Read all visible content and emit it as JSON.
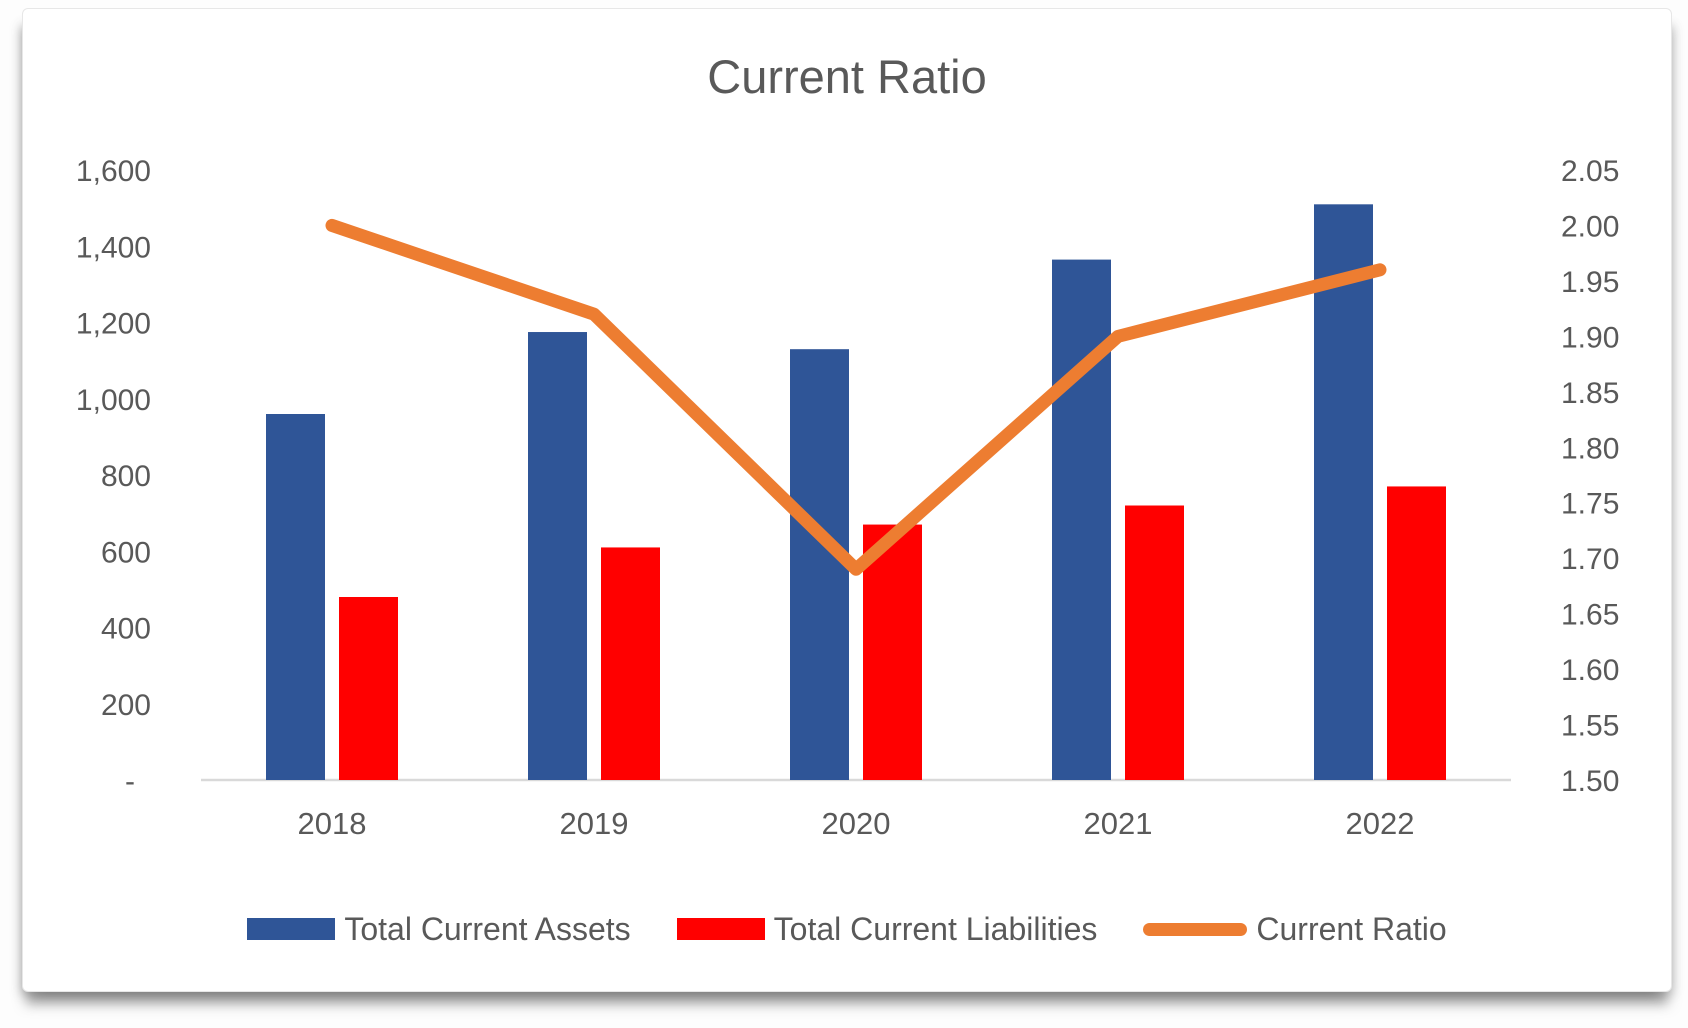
{
  "chart_data": {
    "type": "combo-bar-line",
    "title": "Current Ratio",
    "categories": [
      "2018",
      "2019",
      "2020",
      "2021",
      "2022"
    ],
    "series": [
      {
        "name": "Total Current Assets",
        "type": "bar",
        "axis": "left",
        "color": "#2F5597",
        "values": [
          960,
          1175,
          1130,
          1365,
          1510
        ]
      },
      {
        "name": "Total Current Liabilities",
        "type": "bar",
        "axis": "left",
        "color": "#FF0000",
        "values": [
          480,
          610,
          670,
          720,
          770
        ]
      },
      {
        "name": "Current Ratio",
        "type": "line",
        "axis": "right",
        "color": "#ED7D31",
        "values": [
          2.0,
          1.92,
          1.69,
          1.9,
          1.96
        ]
      }
    ],
    "left_axis": {
      "min": 0,
      "max": 1600,
      "tick_step": 200,
      "tick_labels": [
        "1,600",
        "1,400",
        "1,200",
        "1,000",
        "800",
        "600",
        "400",
        "200",
        "-"
      ]
    },
    "right_axis": {
      "min": 1.5,
      "max": 2.05,
      "tick_step": 0.05,
      "tick_labels": [
        "2.05",
        "2.00",
        "1.95",
        "1.90",
        "1.85",
        "1.80",
        "1.75",
        "1.70",
        "1.65",
        "1.60",
        "1.55",
        "1.50"
      ]
    },
    "grid": false,
    "legend_position": "bottom",
    "colors": {
      "title_text": "#595959",
      "axis_text": "#595959",
      "axis_line": "#D9D9D9"
    }
  }
}
